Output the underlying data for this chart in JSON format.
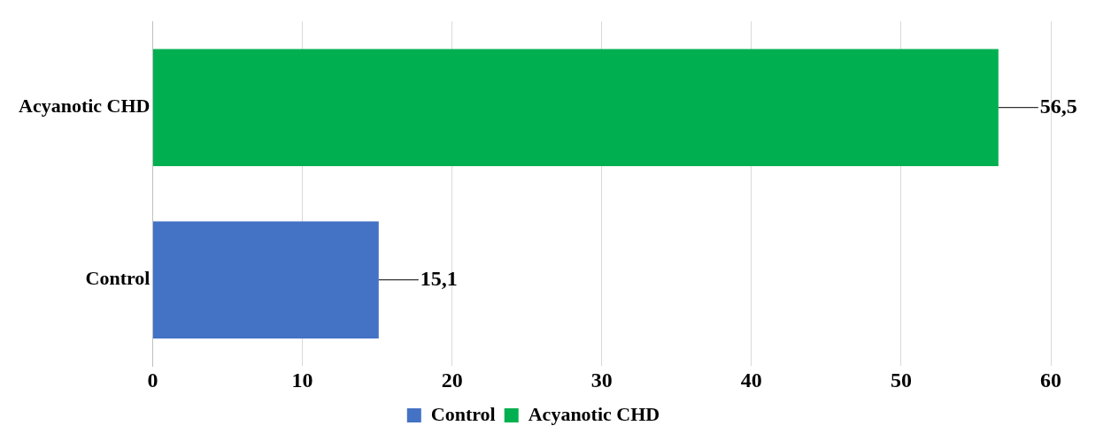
{
  "chart_data": {
    "type": "bar",
    "orientation": "horizontal",
    "categories": [
      "Acyanotic CHD",
      "Control"
    ],
    "series": [
      {
        "name": "Control",
        "color": "#4472c4",
        "values": [
          null,
          15.1
        ],
        "value_labels": [
          null,
          "15,1"
        ]
      },
      {
        "name": "Acyanotic CHD",
        "color": "#00b050",
        "values": [
          56.5,
          null
        ],
        "value_labels": [
          "56,5",
          null
        ]
      }
    ],
    "xlim": [
      0,
      60
    ],
    "xticks": [
      0,
      10,
      20,
      30,
      40,
      50,
      60
    ],
    "grid": "x",
    "legend": "bottom"
  }
}
